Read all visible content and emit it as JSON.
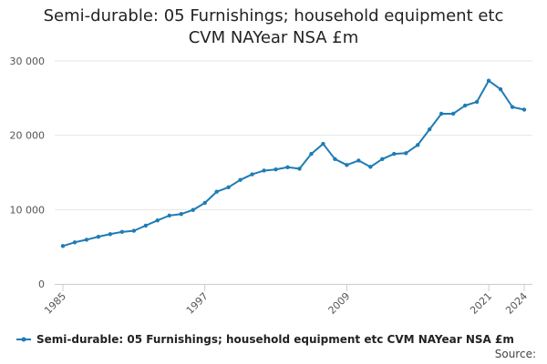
{
  "chart_data": {
    "type": "line",
    "title_lines": [
      "Semi-durable: 05 Furnishings; household equipment etc",
      "CVM NAYear NSA £m"
    ],
    "x_ticks": [
      "1985",
      "1997",
      "2009",
      "2021",
      "2024"
    ],
    "y_ticks": [
      "0",
      "10 000",
      "20 000",
      "30 000"
    ],
    "xlim": [
      1985,
      2024
    ],
    "ylim": [
      0,
      30000
    ],
    "grid": "horizontal",
    "legend_position": "bottom-left",
    "series": [
      {
        "name": "Semi-durable: 05 Furnishings; household equipment etc CVM NAYear NSA £m",
        "color": "#1f7cb4",
        "x": [
          1985,
          1986,
          1987,
          1988,
          1989,
          1990,
          1991,
          1992,
          1993,
          1994,
          1995,
          1996,
          1997,
          1998,
          1999,
          2000,
          2001,
          2002,
          2003,
          2004,
          2005,
          2006,
          2007,
          2008,
          2009,
          2010,
          2011,
          2012,
          2013,
          2014,
          2015,
          2016,
          2017,
          2018,
          2019,
          2020,
          2021,
          2022,
          2023,
          2024
        ],
        "values": [
          5100,
          5600,
          5950,
          6350,
          6700,
          7000,
          7150,
          7850,
          8550,
          9200,
          9400,
          9950,
          10900,
          12400,
          13000,
          14000,
          14750,
          15250,
          15400,
          15700,
          15500,
          17500,
          18850,
          16800,
          16000,
          16600,
          15750,
          16800,
          17500,
          17600,
          18700,
          20800,
          22900,
          22900,
          24000,
          24500,
          27350,
          26200,
          23800,
          23450
        ]
      }
    ]
  },
  "legend": {
    "label": "Semi-durable: 05 Furnishings; household equipment etc CVM NAYear NSA £m"
  },
  "footer": {
    "source": "Source:"
  }
}
